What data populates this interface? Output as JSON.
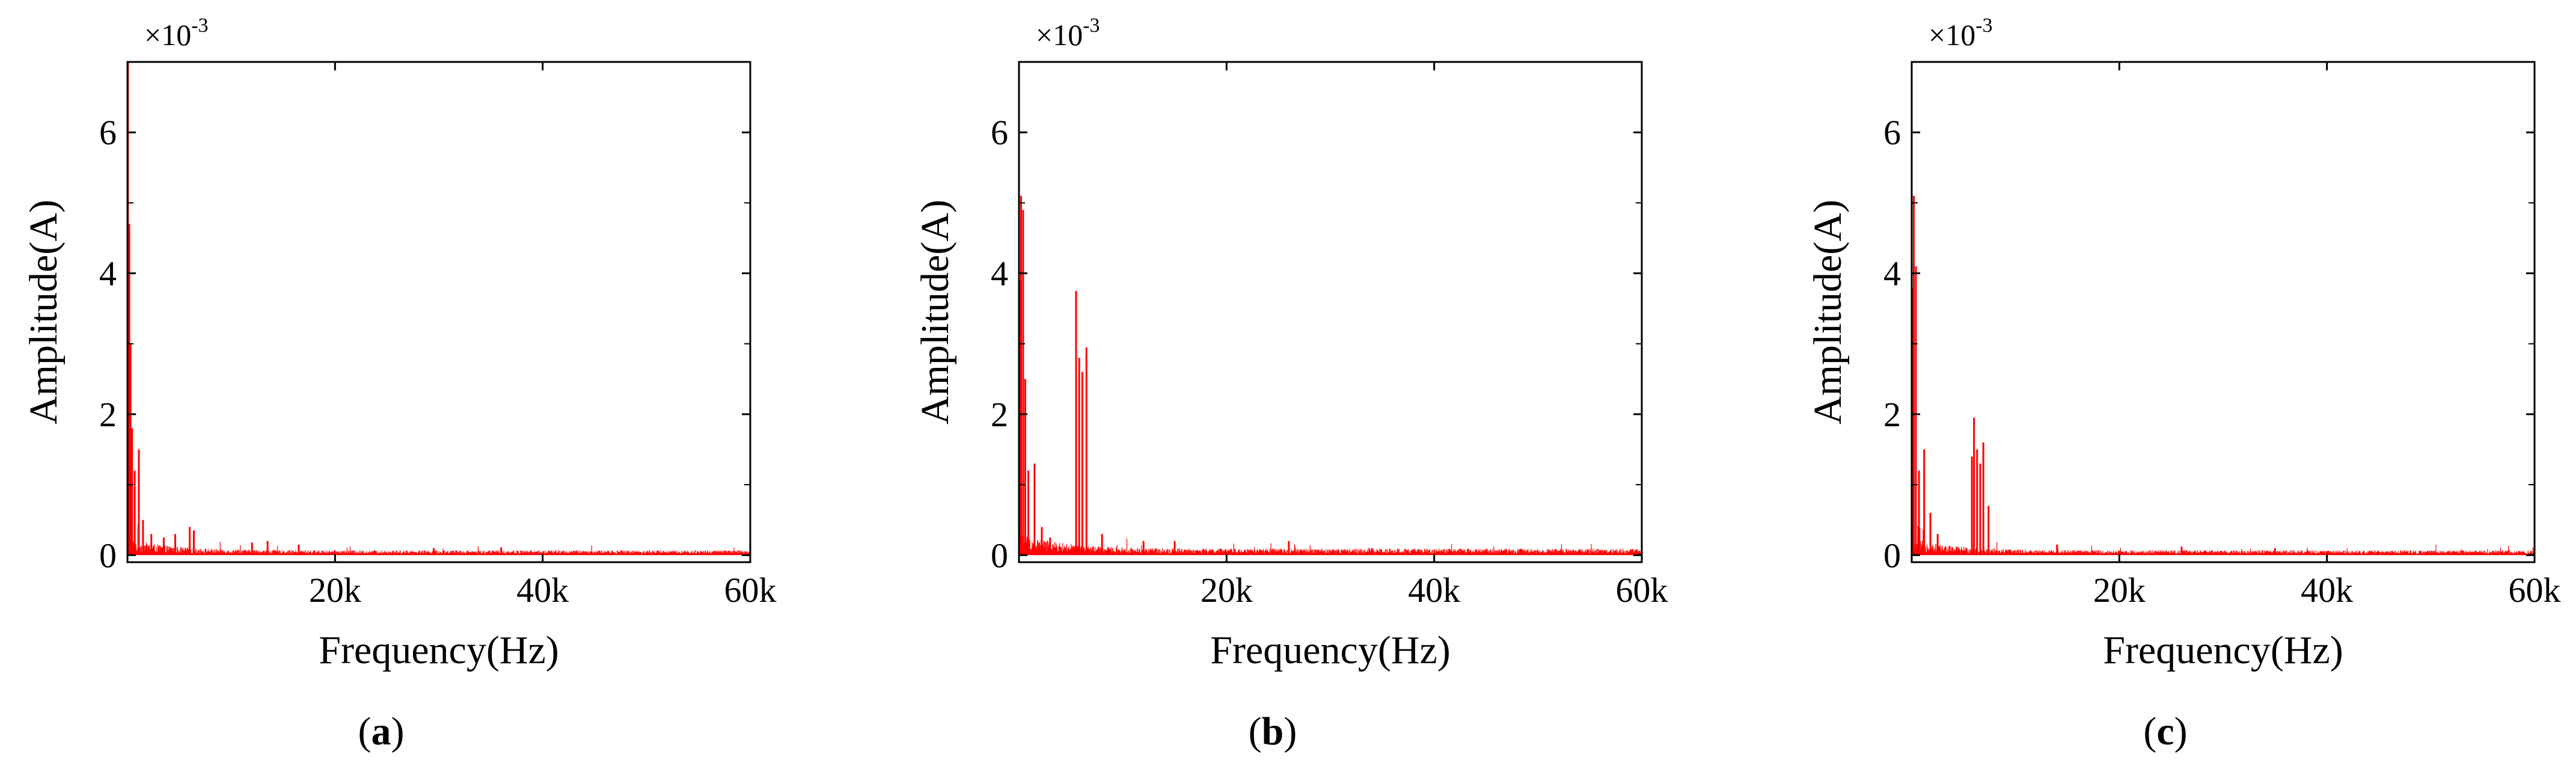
{
  "chart_data": [
    {
      "type": "line",
      "panel": "a",
      "caption_open": "(",
      "caption_letter": "a",
      "caption_close": ")",
      "xlabel": "Frequency(Hz)",
      "ylabel": "Amplitude(A)",
      "exponent_base": "×10",
      "exponent_power": "-3",
      "xlim": [
        0,
        60000
      ],
      "ylim": [
        -0.1,
        7.0
      ],
      "xticks": [
        20000,
        40000,
        60000
      ],
      "xtick_labels": [
        "20k",
        "40k",
        "60k"
      ],
      "yticks": [
        0,
        2,
        4,
        6
      ],
      "ytick_labels": [
        "0",
        "2",
        "4",
        "6"
      ],
      "series_color": "#ff0000",
      "noise_floor": 0.06,
      "peaks": [
        {
          "f": 50,
          "a": 7.0
        },
        {
          "f": 180,
          "a": 4.7
        },
        {
          "f": 300,
          "a": 3.0
        },
        {
          "f": 450,
          "a": 1.8
        },
        {
          "f": 700,
          "a": 1.2
        },
        {
          "f": 1100,
          "a": 1.5
        },
        {
          "f": 1500,
          "a": 0.5
        },
        {
          "f": 2300,
          "a": 0.3
        },
        {
          "f": 3500,
          "a": 0.25
        },
        {
          "f": 4600,
          "a": 0.3
        },
        {
          "f": 6000,
          "a": 0.4
        },
        {
          "f": 6400,
          "a": 0.35
        },
        {
          "f": 12000,
          "a": 0.18
        },
        {
          "f": 13500,
          "a": 0.2
        },
        {
          "f": 16500,
          "a": 0.15
        },
        {
          "f": 29500,
          "a": 0.1
        },
        {
          "f": 36000,
          "a": 0.11
        }
      ]
    },
    {
      "type": "line",
      "panel": "b",
      "caption_open": "(",
      "caption_letter": "b",
      "caption_close": ")",
      "xlabel": "Frequency(Hz)",
      "ylabel": "Amplitude(A)",
      "exponent_base": "×10",
      "exponent_power": "-3",
      "xlim": [
        0,
        60000
      ],
      "ylim": [
        -0.1,
        7.0
      ],
      "xticks": [
        20000,
        40000,
        60000
      ],
      "xtick_labels": [
        "20k",
        "40k",
        "60k"
      ],
      "yticks": [
        0,
        2,
        4,
        6
      ],
      "ytick_labels": [
        "0",
        "2",
        "4",
        "6"
      ],
      "series_color": "#ff0000",
      "noise_floor": 0.08,
      "peaks": [
        {
          "f": 50,
          "a": 3.9
        },
        {
          "f": 200,
          "a": 5.1
        },
        {
          "f": 400,
          "a": 4.9
        },
        {
          "f": 600,
          "a": 2.5
        },
        {
          "f": 900,
          "a": 1.2
        },
        {
          "f": 1500,
          "a": 1.3
        },
        {
          "f": 2200,
          "a": 0.4
        },
        {
          "f": 3000,
          "a": 0.25
        },
        {
          "f": 5500,
          "a": 3.75
        },
        {
          "f": 5800,
          "a": 2.8
        },
        {
          "f": 6100,
          "a": 2.6
        },
        {
          "f": 6500,
          "a": 2.95
        },
        {
          "f": 8000,
          "a": 0.3
        },
        {
          "f": 12000,
          "a": 0.2
        },
        {
          "f": 15000,
          "a": 0.2
        },
        {
          "f": 26000,
          "a": 0.2
        },
        {
          "f": 34000,
          "a": 0.1
        }
      ]
    },
    {
      "type": "line",
      "panel": "c",
      "caption_open": "(",
      "caption_letter": "c",
      "caption_close": ")",
      "xlabel": "Frequency(Hz)",
      "ylabel": "Amplitude(A)",
      "exponent_base": "×10",
      "exponent_power": "-3",
      "xlim": [
        0,
        60000
      ],
      "ylim": [
        -0.1,
        7.0
      ],
      "xticks": [
        20000,
        40000,
        60000
      ],
      "xtick_labels": [
        "20k",
        "40k",
        "60k"
      ],
      "yticks": [
        0,
        2,
        4,
        6
      ],
      "ytick_labels": [
        "0",
        "2",
        "4",
        "6"
      ],
      "series_color": "#ff0000",
      "noise_floor": 0.06,
      "peaks": [
        {
          "f": 50,
          "a": 3.8
        },
        {
          "f": 200,
          "a": 5.1
        },
        {
          "f": 400,
          "a": 4.1
        },
        {
          "f": 700,
          "a": 1.2
        },
        {
          "f": 1200,
          "a": 1.5
        },
        {
          "f": 1800,
          "a": 0.6
        },
        {
          "f": 2500,
          "a": 0.3
        },
        {
          "f": 5800,
          "a": 1.4
        },
        {
          "f": 6000,
          "a": 1.95
        },
        {
          "f": 6300,
          "a": 1.5
        },
        {
          "f": 6600,
          "a": 1.3
        },
        {
          "f": 6900,
          "a": 1.6
        },
        {
          "f": 7400,
          "a": 0.7
        },
        {
          "f": 14000,
          "a": 0.15
        },
        {
          "f": 26000,
          "a": 0.12
        },
        {
          "f": 35000,
          "a": 0.1
        }
      ]
    }
  ]
}
